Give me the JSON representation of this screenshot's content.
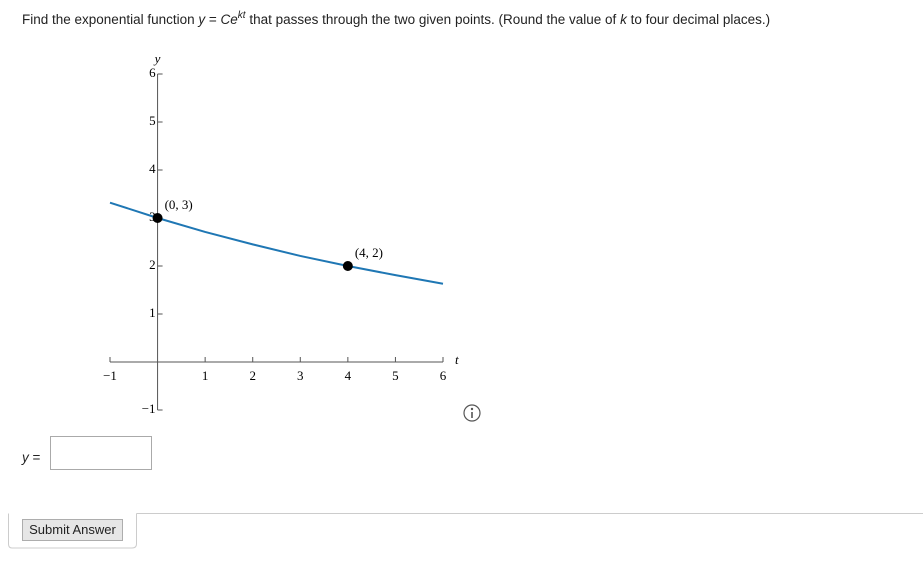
{
  "question": {
    "parts": [
      "Find the exponential function ",
      "y",
      " = ",
      "Ce",
      "kt",
      " that passes through the two given points. (Round the value of ",
      "k",
      " to four decimal places.)"
    ]
  },
  "chart_data": {
    "type": "line",
    "x_label": "t",
    "y_label": "y",
    "xlim": [
      -1,
      6
    ],
    "ylim": [
      -1,
      6
    ],
    "xticks": [
      {
        "value": -1,
        "label": "−1"
      },
      1,
      2,
      3,
      4,
      5,
      6
    ],
    "yticks": [
      {
        "value": -1,
        "label": "−1"
      },
      1,
      2,
      3,
      4,
      5,
      6
    ],
    "curve": {
      "color": "#1f77b4",
      "x": [
        -1,
        0,
        1,
        2,
        3,
        4,
        5,
        6
      ],
      "values": [
        3.32,
        3,
        2.71,
        2.45,
        2.21,
        2,
        1.81,
        1.63
      ]
    },
    "points": {
      "color": "#000000",
      "x": [
        0,
        4
      ],
      "values": [
        3,
        2
      ],
      "value_labels": [
        "(0, 3)",
        "(4, 2)"
      ]
    }
  },
  "answer": {
    "label_var": "y",
    "label_eq": "=",
    "button": "Submit Answer"
  }
}
